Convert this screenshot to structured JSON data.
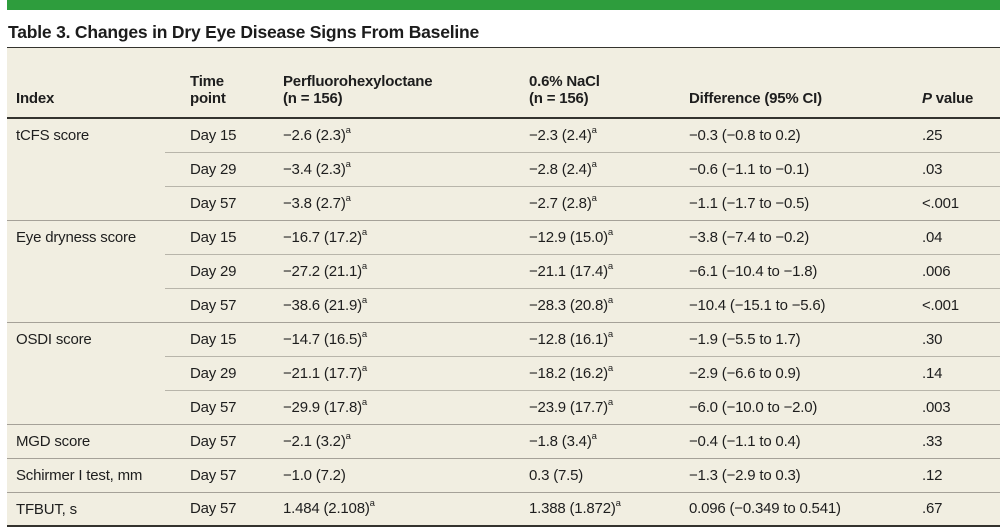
{
  "colors": {
    "accent_green": "#2e9d3d",
    "table_bg": "#f1eee1",
    "rule_dark": "#34332e",
    "rule_group": "#a5a198",
    "rule_sub": "#b8b5aa",
    "text": "#1e1e1e"
  },
  "title": "Table 3. Changes in Dry Eye Disease Signs From Baseline",
  "table": {
    "columns": [
      {
        "key": "index",
        "lines": [
          "Index"
        ]
      },
      {
        "key": "time",
        "lines": [
          "Time",
          "point"
        ]
      },
      {
        "key": "drug",
        "lines": [
          "Perfluorohexyloctane",
          "(n = 156)"
        ]
      },
      {
        "key": "control",
        "lines": [
          "0.6% NaCl",
          "(n = 156)"
        ]
      },
      {
        "key": "difference",
        "lines": [
          "Difference (95% CI)"
        ]
      },
      {
        "key": "p",
        "lines": [
          "P value"
        ],
        "italic_lead": true
      }
    ],
    "groups": [
      {
        "index": "tCFS score",
        "rows": [
          {
            "time": "Day 15",
            "drug": {
              "v": "−2.6 (2.3)",
              "sup": "a"
            },
            "control": {
              "v": "−2.3 (2.4)",
              "sup": "a"
            },
            "difference": "−0.3 (−0.8 to 0.2)",
            "p": ".25"
          },
          {
            "time": "Day 29",
            "drug": {
              "v": "−3.4 (2.3)",
              "sup": "a"
            },
            "control": {
              "v": "−2.8 (2.4)",
              "sup": "a"
            },
            "difference": "−0.6 (−1.1 to −0.1)",
            "p": ".03"
          },
          {
            "time": "Day 57",
            "drug": {
              "v": "−3.8 (2.7)",
              "sup": "a"
            },
            "control": {
              "v": "−2.7 (2.8)",
              "sup": "a"
            },
            "difference": "−1.1 (−1.7 to −0.5)",
            "p": "<.001"
          }
        ]
      },
      {
        "index": "Eye dryness score",
        "rows": [
          {
            "time": "Day 15",
            "drug": {
              "v": "−16.7 (17.2)",
              "sup": "a"
            },
            "control": {
              "v": "−12.9 (15.0)",
              "sup": "a"
            },
            "difference": "−3.8 (−7.4 to −0.2)",
            "p": ".04"
          },
          {
            "time": "Day 29",
            "drug": {
              "v": "−27.2 (21.1)",
              "sup": "a"
            },
            "control": {
              "v": "−21.1 (17.4)",
              "sup": "a"
            },
            "difference": "−6.1 (−10.4 to −1.8)",
            "p": ".006"
          },
          {
            "time": "Day 57",
            "drug": {
              "v": "−38.6 (21.9)",
              "sup": "a"
            },
            "control": {
              "v": "−28.3 (20.8)",
              "sup": "a"
            },
            "difference": "−10.4 (−15.1 to −5.6)",
            "p": "<.001"
          }
        ]
      },
      {
        "index": "OSDI score",
        "rows": [
          {
            "time": "Day 15",
            "drug": {
              "v": "−14.7 (16.5)",
              "sup": "a"
            },
            "control": {
              "v": "−12.8 (16.1)",
              "sup": "a"
            },
            "difference": "−1.9 (−5.5 to 1.7)",
            "p": ".30"
          },
          {
            "time": "Day 29",
            "drug": {
              "v": "−21.1 (17.7)",
              "sup": "a"
            },
            "control": {
              "v": "−18.2 (16.2)",
              "sup": "a"
            },
            "difference": "−2.9 (−6.6 to 0.9)",
            "p": ".14"
          },
          {
            "time": "Day 57",
            "drug": {
              "v": "−29.9 (17.8)",
              "sup": "a"
            },
            "control": {
              "v": "−23.9 (17.7)",
              "sup": "a"
            },
            "difference": "−6.0 (−10.0 to −2.0)",
            "p": ".003"
          }
        ]
      },
      {
        "index": "MGD score",
        "rows": [
          {
            "time": "Day 57",
            "drug": {
              "v": "−2.1 (3.2)",
              "sup": "a"
            },
            "control": {
              "v": "−1.8 (3.4)",
              "sup": "a"
            },
            "difference": "−0.4 (−1.1 to 0.4)",
            "p": ".33"
          }
        ]
      },
      {
        "index": "Schirmer I test, mm",
        "rows": [
          {
            "time": "Day 57",
            "drug": "−1.0 (7.2)",
            "control": "0.3 (7.5)",
            "difference": "−1.3 (−2.9 to 0.3)",
            "p": ".12"
          }
        ]
      },
      {
        "index": "TFBUT, s",
        "rows": [
          {
            "time": "Day 57",
            "drug": {
              "v": "1.484 (2.108)",
              "sup": "a"
            },
            "control": {
              "v": "1.388 (1.872)",
              "sup": "a"
            },
            "difference": "0.096 (−0.349 to 0.541)",
            "p": ".67"
          }
        ]
      }
    ]
  }
}
